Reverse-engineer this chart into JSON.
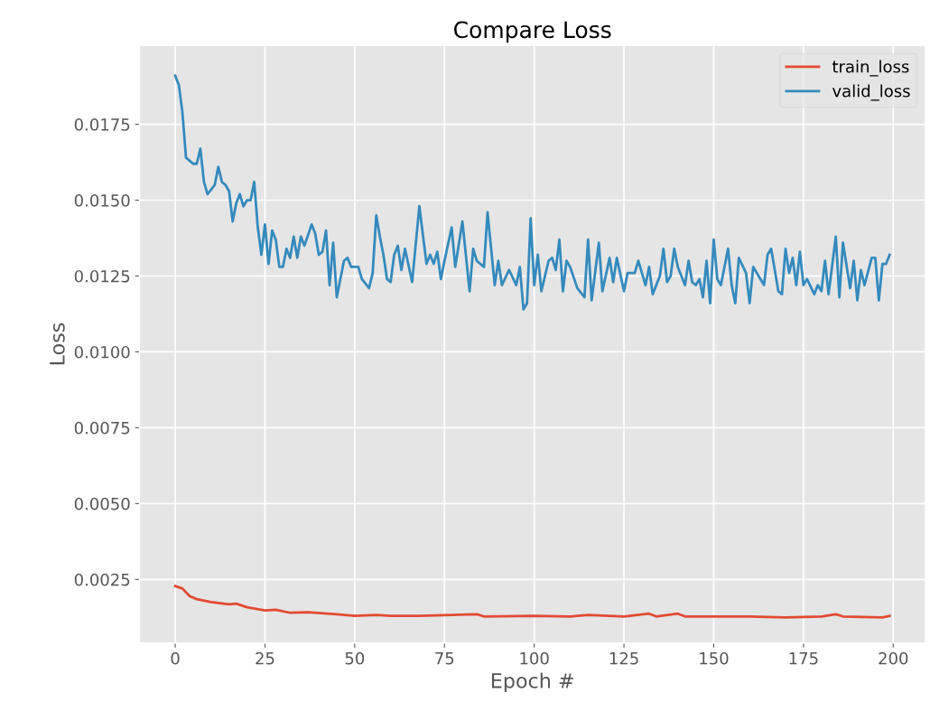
{
  "chart_data": {
    "type": "line",
    "title": "Compare Loss",
    "xlabel": "Epoch #",
    "ylabel": "Loss",
    "xlim": [
      -9.95,
      208.95
    ],
    "xticks": [
      0,
      25,
      50,
      75,
      100,
      125,
      150,
      175,
      200
    ],
    "ylim": [
      0.0004,
      0.0201
    ],
    "yticks": [
      {
        "value": 0.0025,
        "label": "0.0025"
      },
      {
        "value": 0.005,
        "label": "0.0050"
      },
      {
        "value": 0.0075,
        "label": "0.0075"
      },
      {
        "value": 0.01,
        "label": "0.0100"
      },
      {
        "value": 0.0125,
        "label": "0.0125"
      },
      {
        "value": 0.015,
        "label": "0.0150"
      },
      {
        "value": 0.0175,
        "label": "0.0175"
      }
    ],
    "grid": true,
    "legend": "top right",
    "marker": "none",
    "line_style": "solid",
    "series": [
      {
        "name": "train_loss",
        "color": "#e24a33",
        "x": [
          0,
          2,
          4,
          6,
          10,
          15,
          17,
          20,
          25,
          28,
          32,
          37,
          45,
          50,
          56,
          60,
          68,
          84,
          86,
          100,
          110,
          115,
          125,
          132,
          134,
          140,
          142,
          160,
          170,
          180,
          184,
          186,
          197,
          199
        ],
        "values": [
          0.00228,
          0.0022,
          0.00195,
          0.00185,
          0.00175,
          0.00168,
          0.0017,
          0.00158,
          0.00148,
          0.0015,
          0.0014,
          0.00142,
          0.00135,
          0.0013,
          0.00133,
          0.0013,
          0.0013,
          0.00135,
          0.00128,
          0.0013,
          0.00128,
          0.00133,
          0.00128,
          0.00137,
          0.00128,
          0.00137,
          0.00128,
          0.00128,
          0.00125,
          0.00128,
          0.00135,
          0.00128,
          0.00125,
          0.0013
        ]
      },
      {
        "name": "valid_loss",
        "color": "#348abd",
        "x": [
          0,
          1,
          2,
          3,
          4,
          5,
          6,
          7,
          8,
          9,
          11,
          12,
          13,
          14,
          15,
          16,
          17,
          18,
          19,
          20,
          21,
          22,
          23,
          24,
          25,
          26,
          27,
          28,
          29,
          30,
          31,
          32,
          33,
          34,
          35,
          36,
          38,
          39,
          40,
          41,
          42,
          43,
          44,
          45,
          47,
          48,
          49,
          51,
          52,
          54,
          55,
          56,
          57,
          58,
          59,
          60,
          61,
          62,
          63,
          64,
          66,
          68,
          70,
          71,
          72,
          73,
          74,
          75,
          77,
          78,
          80,
          82,
          83,
          84,
          86,
          87,
          89,
          90,
          91,
          93,
          95,
          96,
          97,
          98,
          99,
          100,
          101,
          102,
          104,
          105,
          106,
          107,
          108,
          109,
          110,
          112,
          114,
          115,
          116,
          118,
          119,
          121,
          122,
          123,
          125,
          126,
          128,
          129,
          131,
          132,
          133,
          135,
          136,
          137,
          138,
          139,
          140,
          142,
          143,
          144,
          145,
          146,
          147,
          148,
          149,
          150,
          151,
          152,
          154,
          155,
          156,
          157,
          159,
          160,
          161,
          164,
          165,
          166,
          168,
          169,
          170,
          171,
          172,
          173,
          174,
          175,
          176,
          178,
          179,
          180,
          181,
          182,
          184,
          185,
          186,
          188,
          189,
          190,
          191,
          192,
          194,
          195,
          196,
          197,
          198,
          199
        ],
        "values": [
          0.0191,
          0.0188,
          0.0179,
          0.0164,
          0.0163,
          0.0162,
          0.0162,
          0.0167,
          0.0156,
          0.0152,
          0.0155,
          0.0161,
          0.0156,
          0.0155,
          0.0153,
          0.0143,
          0.0149,
          0.0152,
          0.0148,
          0.015,
          0.015,
          0.0156,
          0.0141,
          0.0132,
          0.0142,
          0.0129,
          0.014,
          0.0137,
          0.0128,
          0.0128,
          0.0134,
          0.0131,
          0.0138,
          0.0131,
          0.0138,
          0.0135,
          0.0142,
          0.0139,
          0.0132,
          0.0133,
          0.014,
          0.0122,
          0.0136,
          0.0118,
          0.013,
          0.0131,
          0.0128,
          0.0128,
          0.0124,
          0.0121,
          0.0126,
          0.0145,
          0.0138,
          0.0132,
          0.0124,
          0.0123,
          0.0132,
          0.0135,
          0.0127,
          0.0134,
          0.0123,
          0.0148,
          0.0129,
          0.0132,
          0.0129,
          0.0133,
          0.0124,
          0.013,
          0.0141,
          0.0128,
          0.0143,
          0.012,
          0.0134,
          0.013,
          0.0128,
          0.0146,
          0.0122,
          0.013,
          0.0122,
          0.0127,
          0.0122,
          0.0128,
          0.0114,
          0.0116,
          0.0144,
          0.0122,
          0.0132,
          0.012,
          0.013,
          0.0131,
          0.0127,
          0.0137,
          0.012,
          0.013,
          0.0128,
          0.0121,
          0.0118,
          0.0137,
          0.0117,
          0.0136,
          0.012,
          0.0131,
          0.0123,
          0.0131,
          0.012,
          0.0126,
          0.0126,
          0.013,
          0.0122,
          0.0128,
          0.0119,
          0.0125,
          0.0134,
          0.0123,
          0.0125,
          0.0134,
          0.0128,
          0.0122,
          0.013,
          0.0123,
          0.0122,
          0.0124,
          0.0118,
          0.013,
          0.0116,
          0.0137,
          0.0124,
          0.0122,
          0.0134,
          0.0122,
          0.0116,
          0.0131,
          0.0126,
          0.0116,
          0.0128,
          0.0122,
          0.0132,
          0.0134,
          0.012,
          0.0119,
          0.0134,
          0.0126,
          0.0131,
          0.0122,
          0.0133,
          0.0122,
          0.0124,
          0.0119,
          0.0122,
          0.012,
          0.013,
          0.0119,
          0.0138,
          0.0118,
          0.0136,
          0.0121,
          0.013,
          0.0117,
          0.0127,
          0.0122,
          0.0131,
          0.0131,
          0.0117,
          0.0129,
          0.0129,
          0.0132
        ]
      }
    ]
  }
}
